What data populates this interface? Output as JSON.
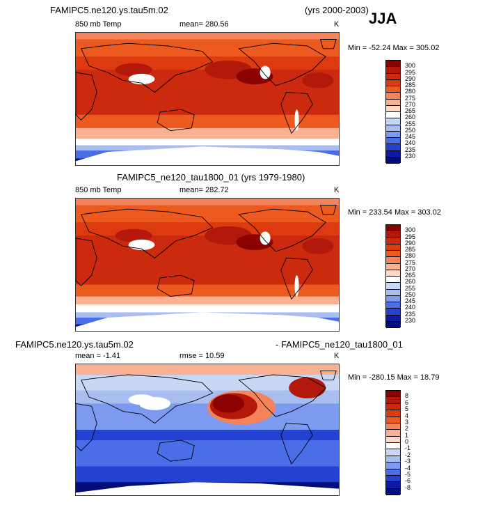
{
  "header": {
    "case_title": "FAMIPC5.ne120.ys.tau5m.02",
    "years": "(yrs 2000-2003)",
    "season": "JJA"
  },
  "panels": [
    {
      "title": "",
      "left_label": "850 mb Temp",
      "center_label": "mean= 280.56",
      "unit": "K",
      "minmax": "Min = -52.24 Max = 305.02",
      "scale": "temp",
      "field": "model_temp"
    },
    {
      "title": "FAMIPC5_ne120_tau1800_01 (yrs 1979-1980)",
      "left_label": "850 mb Temp",
      "center_label": "mean= 282.72",
      "unit": "K",
      "minmax": "Min = 233.54 Max = 303.02",
      "scale": "temp",
      "field": "ref_temp"
    },
    {
      "title_left": "FAMIPC5.ne120.ys.tau5m.02",
      "title_right": "- FAMIPC5_ne120_tau1800_01",
      "left_label": "mean = -1.41",
      "center_label": "rmse = 10.59",
      "unit": "K",
      "minmax": "Min = -280.15 Max = 18.79",
      "scale": "diff",
      "field": "difference"
    }
  ],
  "scales": {
    "temp": {
      "labels": [
        "300",
        "295",
        "290",
        "285",
        "280",
        "275",
        "270",
        "265",
        "260",
        "255",
        "250",
        "245",
        "240",
        "235",
        "230"
      ],
      "colors": [
        "#8b0000",
        "#b2190a",
        "#cc2a0e",
        "#dd3a10",
        "#ec5a20",
        "#f5835a",
        "#fab191",
        "#ffd9c4",
        "#ffffff",
        "#c8d8f4",
        "#a8bdf0",
        "#7b9af0",
        "#4a6ee8",
        "#2342d2",
        "#0e1aa6",
        "#000d7a"
      ]
    },
    "diff": {
      "labels": [
        "8",
        "6",
        "5",
        "4",
        "3",
        "2",
        "1",
        "0",
        "-1",
        "-2",
        "-3",
        "-4",
        "-5",
        "-6",
        "-8"
      ],
      "colors": [
        "#8b0000",
        "#b2190a",
        "#cc2a0e",
        "#dd3a10",
        "#ec5a20",
        "#f5835a",
        "#fab191",
        "#ffd9c4",
        "#ffffff",
        "#c8d8f4",
        "#a8bdf0",
        "#7b9af0",
        "#4a6ee8",
        "#2342d2",
        "#0e1aa6",
        "#000d7a"
      ]
    }
  }
}
